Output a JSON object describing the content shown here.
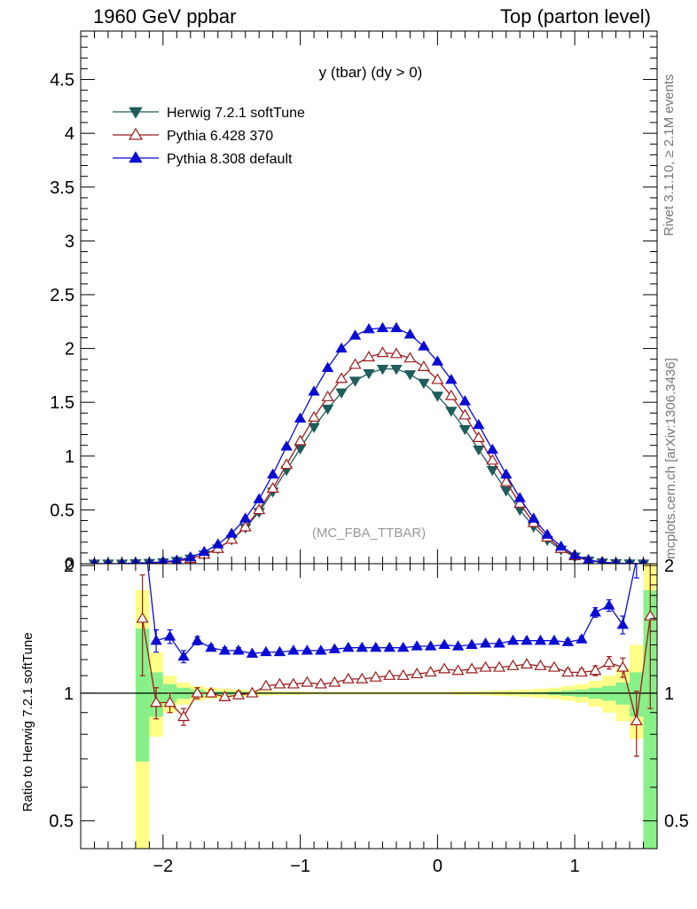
{
  "header": {
    "left": "1960 GeV ppbar",
    "right": "Top (parton level)"
  },
  "side_labels": {
    "rivet": "Rivet 3.1.10, ≥ 2.1M events",
    "mcplots": "mcplots.cern.ch [arXiv:1306.3436]"
  },
  "chart_data": [
    {
      "type": "line",
      "panel": "main",
      "title": "y (tbar) (dy > 0)",
      "watermark": "(MC_FBA_TTBAR)",
      "xlim": [
        -2.6,
        1.6
      ],
      "ylim": [
        0,
        4.95
      ],
      "yticks": [
        "0",
        "0.5",
        "1",
        "1.5",
        "2",
        "2.5",
        "3",
        "3.5",
        "4",
        "4.5"
      ],
      "legend_position": "top-left",
      "x": [
        -2.5,
        -2.4,
        -2.3,
        -2.2,
        -2.1,
        -2.0,
        -1.9,
        -1.8,
        -1.7,
        -1.6,
        -1.5,
        -1.4,
        -1.3,
        -1.2,
        -1.1,
        -1.0,
        -0.9,
        -0.8,
        -0.7,
        -0.6,
        -0.5,
        -0.4,
        -0.3,
        -0.2,
        -0.1,
        0.0,
        0.1,
        0.2,
        0.3,
        0.4,
        0.5,
        0.6,
        0.7,
        0.8,
        0.9,
        1.0,
        1.1,
        1.2,
        1.3,
        1.4,
        1.5
      ],
      "series": [
        {
          "name": "Herwig 7.2.1 softTune",
          "color": "#1f5c5c",
          "marker": "triangle-down-filled",
          "values": [
            0.0,
            0.0,
            0.0,
            0.003,
            0.006,
            0.013,
            0.025,
            0.047,
            0.085,
            0.14,
            0.225,
            0.335,
            0.48,
            0.67,
            0.87,
            1.07,
            1.27,
            1.44,
            1.59,
            1.7,
            1.77,
            1.81,
            1.81,
            1.76,
            1.68,
            1.56,
            1.42,
            1.25,
            1.06,
            0.87,
            0.68,
            0.5,
            0.345,
            0.22,
            0.13,
            0.065,
            0.028,
            0.011,
            0.004,
            0.001,
            0.0
          ]
        },
        {
          "name": "Pythia 6.428 370",
          "color": "#9b1b1b",
          "marker": "triangle-up-open",
          "values": [
            0.0,
            0.0,
            0.0,
            0.004,
            0.006,
            0.012,
            0.022,
            0.046,
            0.085,
            0.14,
            0.225,
            0.34,
            0.5,
            0.7,
            0.92,
            1.14,
            1.36,
            1.55,
            1.72,
            1.85,
            1.92,
            1.96,
            1.95,
            1.91,
            1.83,
            1.71,
            1.56,
            1.38,
            1.17,
            0.96,
            0.76,
            0.56,
            0.38,
            0.245,
            0.14,
            0.072,
            0.031,
            0.013,
            0.005,
            0.001,
            0.0
          ]
        },
        {
          "name": "Pythia 8.308 default",
          "color": "#0b0bd4",
          "marker": "triangle-up-filled",
          "values": [
            0.0,
            0.0,
            0.0,
            0.008,
            0.008,
            0.018,
            0.03,
            0.06,
            0.11,
            0.18,
            0.28,
            0.42,
            0.6,
            0.83,
            1.09,
            1.35,
            1.6,
            1.82,
            2.0,
            2.12,
            2.18,
            2.19,
            2.19,
            2.13,
            2.02,
            1.88,
            1.71,
            1.51,
            1.29,
            1.06,
            0.83,
            0.61,
            0.42,
            0.27,
            0.16,
            0.08,
            0.035,
            0.014,
            0.005,
            0.002,
            0.0
          ]
        }
      ]
    },
    {
      "type": "line",
      "panel": "ratio",
      "ylabel": "Ratio to Herwig 7.2.1 softTune",
      "xlim": [
        -2.6,
        1.6
      ],
      "ylim": [
        0.43,
        2.02
      ],
      "ylog": true,
      "yticks": [
        "0.5",
        "1",
        "2"
      ],
      "xticks": [
        "−2",
        "−1",
        "0",
        "1"
      ],
      "reference_line": 1,
      "uncertainty_bands": {
        "x_edges": [
          -2.2,
          -2.1,
          -2.0,
          -1.9,
          -1.8,
          -1.7,
          -1.6,
          -1.5,
          -1.4,
          -1.3,
          -1.2,
          -1.1,
          -1.0,
          -0.9,
          -0.8,
          -0.7,
          -0.6,
          -0.5,
          -0.4,
          -0.3,
          -0.2,
          -0.1,
          0.0,
          0.1,
          0.2,
          0.3,
          0.4,
          0.5,
          0.6,
          0.7,
          0.8,
          0.9,
          1.0,
          1.1,
          1.2,
          1.3,
          1.4,
          1.5,
          1.6
        ],
        "green": [
          [
            0.69,
            1.42
          ],
          [
            0.88,
            1.12
          ],
          [
            0.95,
            1.05
          ],
          [
            0.97,
            1.03
          ],
          [
            0.98,
            1.02
          ],
          [
            0.99,
            1.01
          ],
          [
            0.99,
            1.01
          ],
          [
            0.992,
            1.008
          ],
          [
            0.995,
            1.005
          ],
          [
            0.996,
            1.004
          ],
          [
            0.997,
            1.003
          ],
          [
            0.997,
            1.003
          ],
          [
            0.998,
            1.002
          ],
          [
            0.998,
            1.002
          ],
          [
            0.998,
            1.002
          ],
          [
            0.998,
            1.002
          ],
          [
            0.998,
            1.002
          ],
          [
            0.998,
            1.002
          ],
          [
            0.998,
            1.002
          ],
          [
            0.998,
            1.002
          ],
          [
            0.998,
            1.002
          ],
          [
            0.998,
            1.002
          ],
          [
            0.998,
            1.002
          ],
          [
            0.998,
            1.002
          ],
          [
            0.998,
            1.002
          ],
          [
            0.997,
            1.003
          ],
          [
            0.997,
            1.003
          ],
          [
            0.996,
            1.004
          ],
          [
            0.995,
            1.005
          ],
          [
            0.994,
            1.006
          ],
          [
            0.99,
            1.01
          ],
          [
            0.985,
            1.015
          ],
          [
            0.98,
            1.02
          ],
          [
            0.97,
            1.03
          ],
          [
            0.96,
            1.04
          ],
          [
            0.94,
            1.06
          ],
          [
            0.88,
            1.12
          ],
          [
            0.3,
            1.75
          ]
        ],
        "yellow": [
          [
            0.3,
            1.75
          ],
          [
            0.79,
            1.25
          ],
          [
            0.9,
            1.1
          ],
          [
            0.94,
            1.06
          ],
          [
            0.96,
            1.04
          ],
          [
            0.97,
            1.03
          ],
          [
            0.975,
            1.025
          ],
          [
            0.98,
            1.02
          ],
          [
            0.985,
            1.015
          ],
          [
            0.987,
            1.013
          ],
          [
            0.99,
            1.01
          ],
          [
            0.99,
            1.01
          ],
          [
            0.992,
            1.008
          ],
          [
            0.993,
            1.007
          ],
          [
            0.993,
            1.007
          ],
          [
            0.993,
            1.007
          ],
          [
            0.993,
            1.007
          ],
          [
            0.993,
            1.007
          ],
          [
            0.993,
            1.007
          ],
          [
            0.993,
            1.007
          ],
          [
            0.993,
            1.007
          ],
          [
            0.993,
            1.007
          ],
          [
            0.993,
            1.007
          ],
          [
            0.99,
            1.01
          ],
          [
            0.99,
            1.01
          ],
          [
            0.988,
            1.012
          ],
          [
            0.985,
            1.015
          ],
          [
            0.983,
            1.017
          ],
          [
            0.98,
            1.02
          ],
          [
            0.975,
            1.025
          ],
          [
            0.97,
            1.03
          ],
          [
            0.96,
            1.04
          ],
          [
            0.95,
            1.05
          ],
          [
            0.93,
            1.07
          ],
          [
            0.9,
            1.1
          ],
          [
            0.86,
            1.15
          ],
          [
            0.78,
            1.3
          ],
          [
            0.3,
            2.2
          ]
        ]
      },
      "series": [
        {
          "name": "Pythia 6.428 370",
          "color": "#9b1b1b",
          "marker": "triangle-up-open",
          "x": [
            -2.15,
            -2.05,
            -1.95,
            -1.85,
            -1.75,
            -1.65,
            -1.55,
            -1.45,
            -1.35,
            -1.25,
            -1.15,
            -1.05,
            -0.95,
            -0.85,
            -0.75,
            -0.65,
            -0.55,
            -0.45,
            -0.35,
            -0.25,
            -0.15,
            -0.05,
            0.05,
            0.15,
            0.25,
            0.35,
            0.45,
            0.55,
            0.65,
            0.75,
            0.85,
            0.95,
            1.05,
            1.15,
            1.25,
            1.35,
            1.45,
            1.55
          ],
          "values": [
            1.5,
            0.95,
            0.95,
            0.88,
            1.0,
            1.0,
            0.98,
            0.99,
            1.0,
            1.04,
            1.05,
            1.05,
            1.06,
            1.05,
            1.06,
            1.08,
            1.08,
            1.09,
            1.1,
            1.1,
            1.11,
            1.12,
            1.14,
            1.13,
            1.14,
            1.15,
            1.15,
            1.16,
            1.17,
            1.16,
            1.15,
            1.12,
            1.12,
            1.13,
            1.18,
            1.15,
            0.86,
            1.52
          ],
          "err_lo": [
            0.4,
            0.08,
            0.05,
            0.04,
            0.03,
            0.02,
            0.02,
            0.02,
            0.01,
            0.01,
            0.01,
            0.01,
            0.01,
            0.01,
            0.01,
            0.01,
            0.01,
            0.01,
            0.01,
            0.01,
            0.01,
            0.01,
            0.01,
            0.01,
            0.01,
            0.01,
            0.01,
            0.01,
            0.01,
            0.01,
            0.01,
            0.02,
            0.02,
            0.03,
            0.04,
            0.06,
            0.15,
            0.6
          ],
          "err_hi": [
            0.4,
            0.08,
            0.05,
            0.04,
            0.03,
            0.02,
            0.02,
            0.02,
            0.01,
            0.01,
            0.01,
            0.01,
            0.01,
            0.01,
            0.01,
            0.01,
            0.01,
            0.01,
            0.01,
            0.01,
            0.01,
            0.01,
            0.01,
            0.01,
            0.01,
            0.01,
            0.01,
            0.01,
            0.01,
            0.01,
            0.01,
            0.02,
            0.02,
            0.03,
            0.04,
            0.06,
            0.15,
            0.6
          ]
        },
        {
          "name": "Pythia 8.308 default",
          "color": "#0b0bd4",
          "marker": "triangle-up-filled",
          "x": [
            -2.15,
            -2.05,
            -1.95,
            -1.85,
            -1.75,
            -1.65,
            -1.55,
            -1.45,
            -1.35,
            -1.25,
            -1.15,
            -1.05,
            -0.95,
            -0.85,
            -0.75,
            -0.65,
            -0.55,
            -0.45,
            -0.35,
            -0.25,
            -0.15,
            -0.05,
            0.05,
            0.15,
            0.25,
            0.35,
            0.45,
            0.55,
            0.65,
            0.75,
            0.85,
            0.95,
            1.05,
            1.15,
            1.25,
            1.35,
            1.45,
            1.55
          ],
          "values": [
            2.6,
            1.33,
            1.36,
            1.22,
            1.33,
            1.28,
            1.26,
            1.26,
            1.24,
            1.25,
            1.25,
            1.26,
            1.26,
            1.26,
            1.27,
            1.28,
            1.28,
            1.28,
            1.28,
            1.28,
            1.29,
            1.29,
            1.3,
            1.29,
            1.3,
            1.31,
            1.31,
            1.33,
            1.33,
            1.33,
            1.33,
            1.32,
            1.34,
            1.55,
            1.61,
            1.45,
            2.07,
            2.6
          ],
          "err_lo": [
            0.5,
            0.08,
            0.05,
            0.04,
            0.03,
            0.02,
            0.02,
            0.02,
            0.01,
            0.01,
            0.01,
            0.01,
            0.01,
            0.01,
            0.01,
            0.01,
            0.01,
            0.01,
            0.01,
            0.01,
            0.01,
            0.01,
            0.01,
            0.01,
            0.01,
            0.01,
            0.01,
            0.01,
            0.01,
            0.01,
            0.01,
            0.02,
            0.02,
            0.04,
            0.05,
            0.07,
            0.2,
            0.5
          ],
          "err_hi": [
            0.5,
            0.08,
            0.05,
            0.04,
            0.03,
            0.02,
            0.02,
            0.02,
            0.01,
            0.01,
            0.01,
            0.01,
            0.01,
            0.01,
            0.01,
            0.01,
            0.01,
            0.01,
            0.01,
            0.01,
            0.01,
            0.01,
            0.01,
            0.01,
            0.01,
            0.01,
            0.01,
            0.01,
            0.01,
            0.01,
            0.01,
            0.02,
            0.02,
            0.04,
            0.05,
            0.07,
            0.2,
            0.5
          ]
        }
      ]
    }
  ]
}
